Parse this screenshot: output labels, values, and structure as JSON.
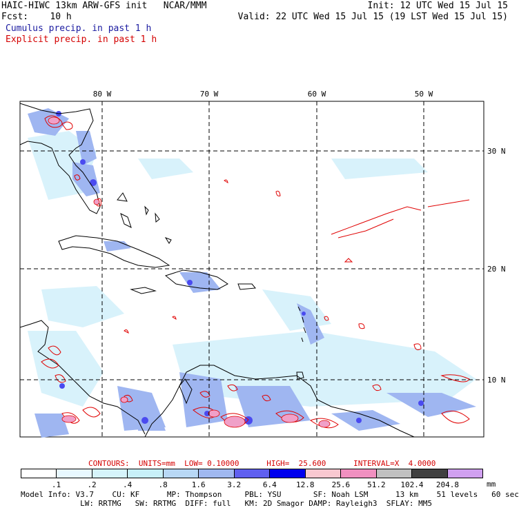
{
  "header": {
    "line1_left": "HAIC-HIWC 13km ARW-GFS init   NCAR/MMM",
    "line1_right": "Init: 12 UTC Wed 15 Jul 15",
    "line2_left": "Fcst:    10 h",
    "line2_right": "Valid: 22 UTC Wed 15 Jul 15 (19 LST Wed 15 Jul 15)",
    "cumulus_label": "Cumulus precip. in past 1 h",
    "explicit_label": "Explicit precip. in past 1 h"
  },
  "map": {
    "lon_labels": [
      "80 W",
      "70 W",
      "60 W",
      "50 W"
    ],
    "lat_labels": [
      "30 N",
      "20 N",
      "10 N"
    ]
  },
  "contours": {
    "text": "CONTOURS:  UNITS=mm  LOW= 0.10000      HIGH=  25.600      INTERVAL=X  4.0000"
  },
  "colorbar": {
    "unit": "mm",
    "labels": [
      ".1",
      ".2",
      ".4",
      ".8",
      "1.6",
      "3.2",
      "6.4",
      "12.8",
      "25.6",
      "51.2",
      "102.4",
      "204.8"
    ],
    "colors": [
      "#ffffff",
      "#e8f8ff",
      "#d6f4fb",
      "#c8f0f8",
      "#b8d8f5",
      "#a0b8f0",
      "#6060f0",
      "#0000ee",
      "#f8c8d0",
      "#f090c0",
      "#c0c0c0",
      "#404040",
      "#d0a0f0"
    ]
  },
  "footer": {
    "line1": "Model Info: V3.7    CU: KF      MP: Thompson     PBL: YSU       SF: Noah LSM      13 km    51 levels   60 sec",
    "line2": "             LW: RRTMG   SW: RRTMG  DIFF: full   KM: 2D Smagor DAMP: Rayleigh3  SFLAY: MM5"
  }
}
